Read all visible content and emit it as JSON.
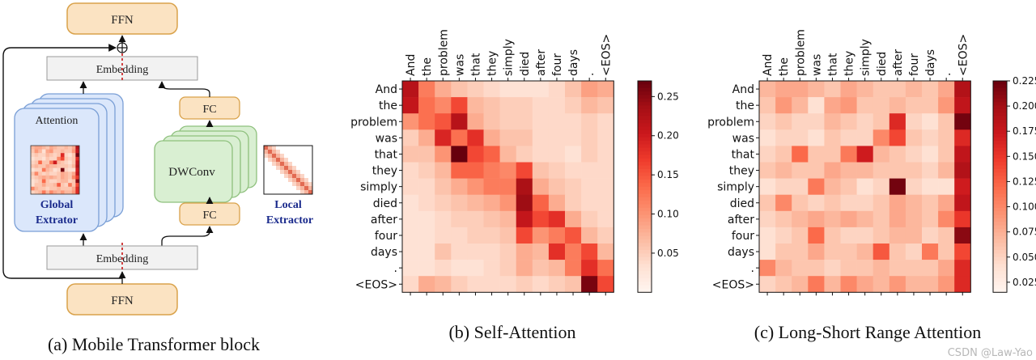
{
  "panel_a": {
    "ffn_top": "FFN",
    "embedding_top": "Embedding",
    "attention_label": "Attention",
    "global_label_1": "Global",
    "global_label_2": "Extrator",
    "fc_top": "FC",
    "dwconv": "DWConv",
    "fc_bottom": "FC",
    "local_label_1": "Local",
    "local_label_2": "Extractor",
    "embedding_bottom": "Embedding",
    "ffn_bottom": "FFN",
    "caption": "(a) Mobile Transformer block",
    "colors": {
      "ffn_fill": "#fbe3c2",
      "ffn_stroke": "#d9a24a",
      "embed_fill": "#f2f2f2",
      "attn_fill": "#dbe7fb",
      "attn_stroke": "#7a9fd6",
      "conv_fill": "#d9efd2",
      "conv_stroke": "#8ec07d",
      "text_blue": "#1a2a8c",
      "dash_red": "#d04040"
    }
  },
  "tokens": [
    "And",
    "the",
    "problem",
    "was",
    "that",
    "they",
    "simply",
    "died",
    "after",
    "four",
    "days",
    ".",
    "<EOS>"
  ],
  "chart_data": [
    {
      "type": "heatmap",
      "caption": "(b) Self-Attention",
      "colorbar": {
        "min": 0.0,
        "max": 0.27,
        "ticks": [
          "0.05",
          "0.10",
          "0.15",
          "0.20",
          "0.25"
        ],
        "tick_values": [
          0.05,
          0.1,
          0.15,
          0.2,
          0.25
        ]
      },
      "values": [
        [
          0.22,
          0.12,
          0.08,
          0.06,
          0.05,
          0.04,
          0.03,
          0.03,
          0.03,
          0.04,
          0.06,
          0.09,
          0.08
        ],
        [
          0.21,
          0.13,
          0.11,
          0.16,
          0.07,
          0.06,
          0.05,
          0.05,
          0.04,
          0.04,
          0.05,
          0.07,
          0.06
        ],
        [
          0.1,
          0.13,
          0.15,
          0.22,
          0.08,
          0.06,
          0.05,
          0.05,
          0.04,
          0.04,
          0.04,
          0.05,
          0.04
        ],
        [
          0.05,
          0.08,
          0.19,
          0.13,
          0.18,
          0.08,
          0.06,
          0.06,
          0.04,
          0.04,
          0.04,
          0.05,
          0.04
        ],
        [
          0.06,
          0.06,
          0.1,
          0.27,
          0.16,
          0.14,
          0.07,
          0.05,
          0.04,
          0.04,
          0.03,
          0.05,
          0.04
        ],
        [
          0.04,
          0.05,
          0.07,
          0.14,
          0.14,
          0.12,
          0.11,
          0.16,
          0.06,
          0.05,
          0.04,
          0.04,
          0.04
        ],
        [
          0.04,
          0.04,
          0.06,
          0.08,
          0.1,
          0.12,
          0.12,
          0.23,
          0.08,
          0.06,
          0.05,
          0.04,
          0.04
        ],
        [
          0.03,
          0.04,
          0.05,
          0.06,
          0.07,
          0.08,
          0.1,
          0.24,
          0.14,
          0.08,
          0.05,
          0.04,
          0.04
        ],
        [
          0.03,
          0.03,
          0.04,
          0.05,
          0.05,
          0.06,
          0.07,
          0.21,
          0.16,
          0.18,
          0.08,
          0.05,
          0.04
        ],
        [
          0.03,
          0.03,
          0.04,
          0.04,
          0.05,
          0.05,
          0.06,
          0.16,
          0.1,
          0.12,
          0.15,
          0.07,
          0.05
        ],
        [
          0.03,
          0.03,
          0.06,
          0.04,
          0.04,
          0.04,
          0.05,
          0.08,
          0.07,
          0.18,
          0.12,
          0.16,
          0.07
        ],
        [
          0.03,
          0.03,
          0.04,
          0.03,
          0.03,
          0.04,
          0.05,
          0.08,
          0.06,
          0.07,
          0.12,
          0.18,
          0.13
        ],
        [
          0.04,
          0.08,
          0.07,
          0.05,
          0.04,
          0.04,
          0.04,
          0.05,
          0.04,
          0.05,
          0.06,
          0.26,
          0.16
        ]
      ]
    },
    {
      "type": "heatmap",
      "caption": "(c) Long-Short Range Attention",
      "colorbar": {
        "min": 0.015,
        "max": 0.225,
        "ticks": [
          "0.025",
          "0.050",
          "0.075",
          "0.100",
          "0.125",
          "0.150",
          "0.175",
          "0.200",
          "0.225"
        ],
        "tick_values": [
          0.025,
          0.05,
          0.075,
          0.1,
          0.125,
          0.15,
          0.175,
          0.2,
          0.225
        ]
      },
      "values": [
        [
          0.07,
          0.08,
          0.08,
          0.07,
          0.06,
          0.08,
          0.07,
          0.06,
          0.06,
          0.07,
          0.06,
          0.08,
          0.19
        ],
        [
          0.06,
          0.09,
          0.07,
          0.04,
          0.08,
          0.09,
          0.06,
          0.06,
          0.07,
          0.06,
          0.06,
          0.09,
          0.18
        ],
        [
          0.05,
          0.06,
          0.05,
          0.05,
          0.07,
          0.06,
          0.05,
          0.06,
          0.16,
          0.05,
          0.04,
          0.06,
          0.22
        ],
        [
          0.04,
          0.05,
          0.05,
          0.04,
          0.06,
          0.05,
          0.05,
          0.1,
          0.14,
          0.06,
          0.05,
          0.06,
          0.16
        ],
        [
          0.05,
          0.06,
          0.12,
          0.06,
          0.06,
          0.11,
          0.17,
          0.07,
          0.06,
          0.05,
          0.04,
          0.06,
          0.18
        ],
        [
          0.06,
          0.07,
          0.06,
          0.06,
          0.08,
          0.07,
          0.07,
          0.06,
          0.06,
          0.06,
          0.05,
          0.07,
          0.19
        ],
        [
          0.04,
          0.05,
          0.05,
          0.11,
          0.07,
          0.06,
          0.04,
          0.05,
          0.22,
          0.05,
          0.04,
          0.04,
          0.17
        ],
        [
          0.06,
          0.1,
          0.06,
          0.05,
          0.06,
          0.05,
          0.05,
          0.06,
          0.08,
          0.07,
          0.06,
          0.08,
          0.18
        ],
        [
          0.05,
          0.06,
          0.07,
          0.08,
          0.07,
          0.08,
          0.07,
          0.06,
          0.08,
          0.07,
          0.06,
          0.1,
          0.15
        ],
        [
          0.04,
          0.05,
          0.06,
          0.12,
          0.06,
          0.05,
          0.05,
          0.06,
          0.07,
          0.07,
          0.05,
          0.06,
          0.21
        ],
        [
          0.04,
          0.06,
          0.06,
          0.08,
          0.06,
          0.06,
          0.07,
          0.13,
          0.06,
          0.05,
          0.11,
          0.06,
          0.14
        ],
        [
          0.1,
          0.07,
          0.06,
          0.06,
          0.05,
          0.06,
          0.06,
          0.07,
          0.06,
          0.06,
          0.06,
          0.08,
          0.16
        ],
        [
          0.05,
          0.06,
          0.07,
          0.11,
          0.07,
          0.1,
          0.08,
          0.07,
          0.09,
          0.07,
          0.07,
          0.09,
          0.16
        ]
      ]
    }
  ],
  "watermark": "CSDN @Law-Yao"
}
